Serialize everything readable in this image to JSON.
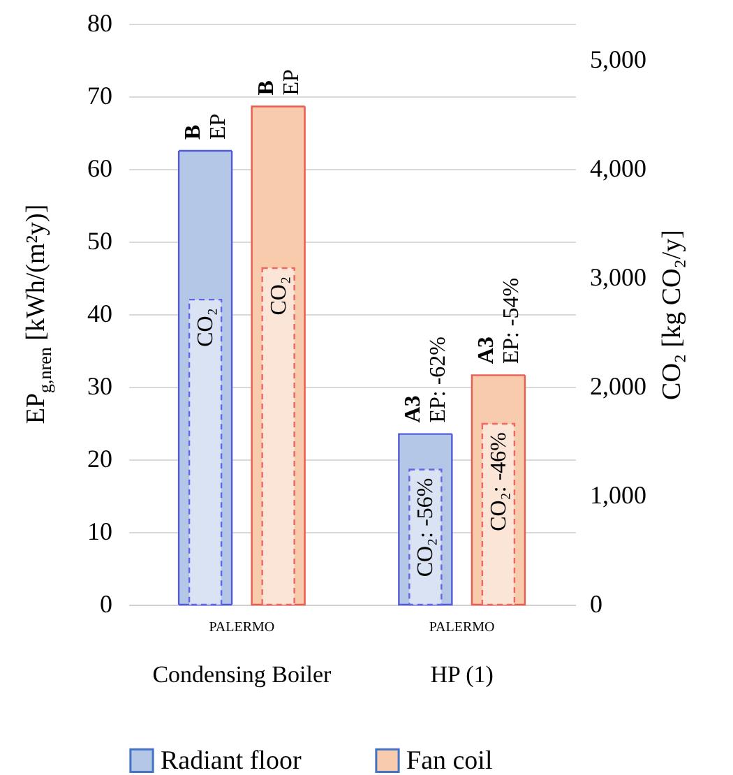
{
  "chart_data": {
    "type": "bar",
    "categories": [
      "Condensing Boiler",
      "HP (1)"
    ],
    "ylabel": "EP$_{g,nren}$ [kWh/(m²y)]",
    "y2label": "CO₂ [kg CO₂/y]",
    "ylim": [
      0,
      80
    ],
    "yticks": [
      0,
      10,
      20,
      30,
      40,
      50,
      60,
      70,
      80
    ],
    "y2lim": [
      0,
      5333
    ],
    "y2ticks": [
      0,
      {
        "value": 1000,
        "label": "1,000"
      },
      {
        "value": 2000,
        "label": "2,000"
      },
      {
        "value": 3000,
        "label": "3,000"
      },
      {
        "value": 4000,
        "label": "4,000"
      },
      {
        "value": 5000,
        "label": "5,000"
      }
    ],
    "series": [
      {
        "name": "Radiant floor",
        "color": "#b4c7e7",
        "values": [
          62.5,
          23.5
        ]
      },
      {
        "name": "Fan coil",
        "color": "#f8cbad",
        "values": [
          68.6,
          31.6
        ]
      },
      {
        "color": "#dae3f3",
        "values": [
          2800,
          1240
        ],
        "axis": "y2",
        "line_style": "dashed"
      },
      {
        "color": "#fbe5d6",
        "values": [
          3090,
          1660
        ],
        "axis": "y2",
        "line_style": "dashed"
      }
    ],
    "annotations": [
      "B",
      "EP",
      "B",
      "EP",
      "A3",
      "EP: -62%",
      "A3",
      "EP: -54%",
      "CO₂",
      "CO₂",
      "CO₂: -56%",
      "CO₂: -46%",
      "PALERMO",
      "PALERMO"
    ],
    "grid": true,
    "legend": "bottom"
  }
}
